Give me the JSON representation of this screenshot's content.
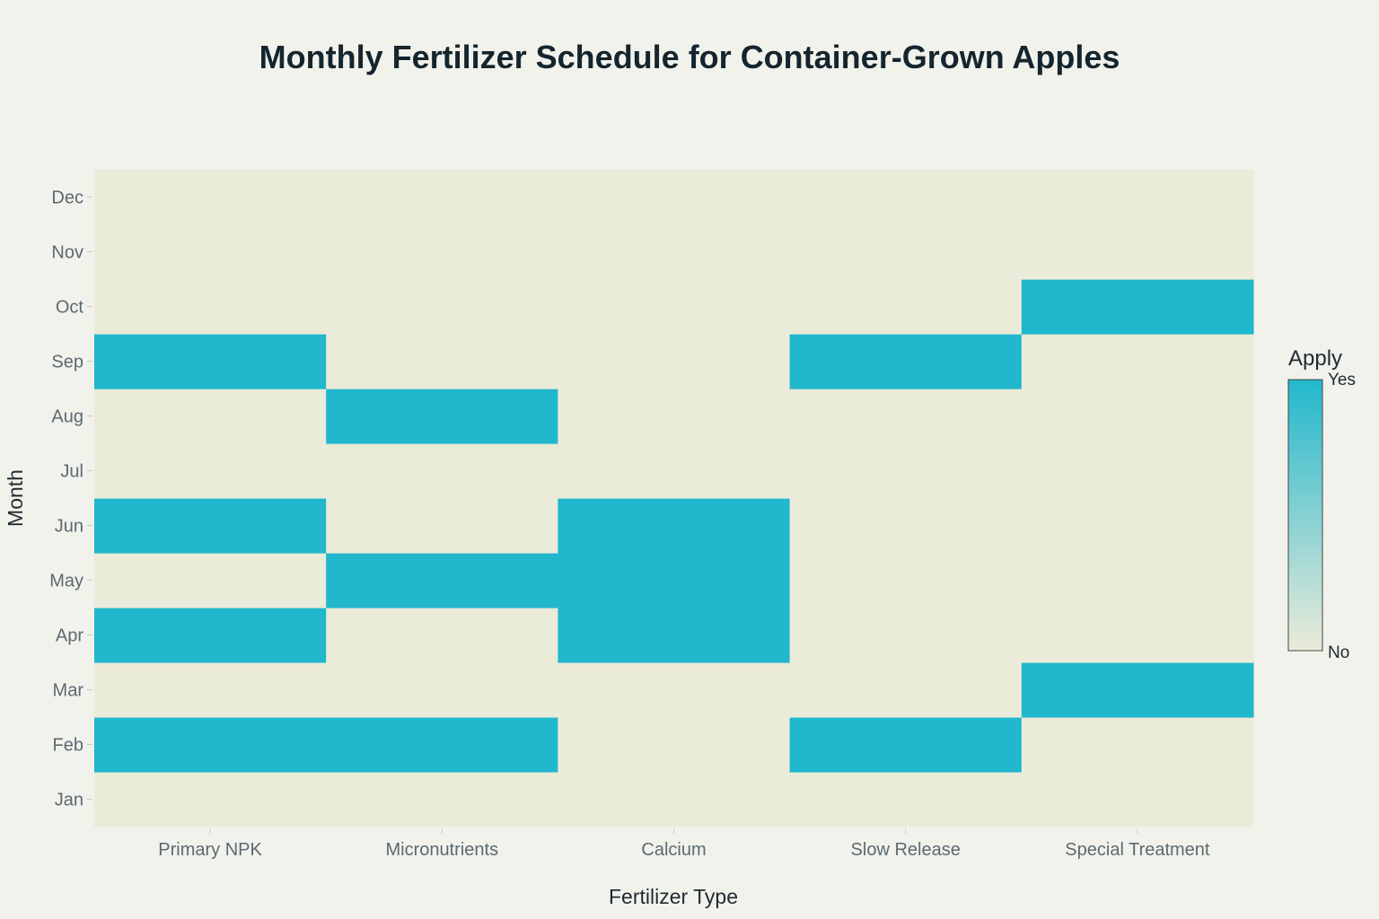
{
  "chart_data": {
    "type": "heatmap",
    "title": "Monthly Fertilizer Schedule for Container-Grown Apples",
    "xlabel": "Fertilizer Type",
    "ylabel": "Month",
    "x_categories": [
      "Primary NPK",
      "Micronutrients",
      "Calcium",
      "Slow Release",
      "Special Treatment"
    ],
    "y_categories": [
      "Jan",
      "Feb",
      "Mar",
      "Apr",
      "May",
      "Jun",
      "Jul",
      "Aug",
      "Sep",
      "Oct",
      "Nov",
      "Dec"
    ],
    "z": [
      [
        0,
        0,
        0,
        0,
        0
      ],
      [
        1,
        1,
        0,
        1,
        0
      ],
      [
        0,
        0,
        0,
        0,
        1
      ],
      [
        1,
        0,
        1,
        0,
        0
      ],
      [
        0,
        1,
        1,
        0,
        0
      ],
      [
        1,
        0,
        1,
        0,
        0
      ],
      [
        0,
        0,
        0,
        0,
        0
      ],
      [
        0,
        1,
        0,
        0,
        0
      ],
      [
        1,
        0,
        0,
        1,
        0
      ],
      [
        0,
        0,
        0,
        0,
        1
      ],
      [
        0,
        0,
        0,
        0,
        0
      ],
      [
        0,
        0,
        0,
        0,
        0
      ]
    ],
    "colorbar": {
      "title": "Apply",
      "tick_labels": [
        "No",
        "Yes"
      ],
      "tick_values": [
        0,
        1
      ],
      "colors": [
        "#EBEBD9",
        "#21B7CC"
      ]
    },
    "grid": false
  }
}
